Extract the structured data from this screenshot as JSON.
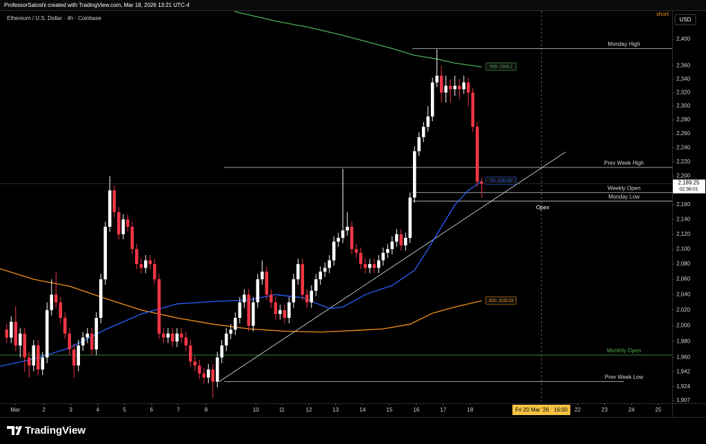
{
  "header": {
    "credit": "ProfessorSatoshi created with TradingView.com, Mar 18, 2026 13:21 UTC-4"
  },
  "chart_data": {
    "type": "candlestick",
    "title": "Ethereum / U.S. Dollar · 4h · Coinbase",
    "currency": "USD",
    "badge": "short",
    "log_scale": true,
    "grid": false,
    "xlim": [
      -1.5,
      148.5
    ],
    "ylim": [
      1903.6,
      2443.6
    ],
    "yticks": [
      {
        "value": 2400,
        "label": "2,400"
      },
      {
        "value": 2360,
        "label": "2,360"
      },
      {
        "value": 2340,
        "label": "2,340"
      },
      {
        "value": 2320,
        "label": "2,320"
      },
      {
        "value": 2300,
        "label": "2,300"
      },
      {
        "value": 2280,
        "label": "2,280"
      },
      {
        "value": 2260,
        "label": "2,260"
      },
      {
        "value": 2240,
        "label": "2,240"
      },
      {
        "value": 2220,
        "label": "2,220"
      },
      {
        "value": 2200,
        "label": "2,200"
      },
      {
        "value": 2160,
        "label": "2,160"
      },
      {
        "value": 2140,
        "label": "2,140"
      },
      {
        "value": 2120,
        "label": "2,120"
      },
      {
        "value": 2100,
        "label": "2,100"
      },
      {
        "value": 2080,
        "label": "2,080"
      },
      {
        "value": 2060,
        "label": "2,060"
      },
      {
        "value": 2040,
        "label": "2,040"
      },
      {
        "value": 2020,
        "label": "2,020"
      },
      {
        "value": 2000,
        "label": "2,000"
      },
      {
        "value": 1980,
        "label": "1,980"
      },
      {
        "value": 1960,
        "label": "1,960"
      },
      {
        "value": 1942,
        "label": "1,942"
      },
      {
        "value": 1924,
        "label": "1,924"
      },
      {
        "value": 1907,
        "label": "1,907"
      }
    ],
    "xticks": [
      {
        "value": 1.9,
        "label": "Mar"
      },
      {
        "value": 8.3,
        "label": "2"
      },
      {
        "value": 14.3,
        "label": "3"
      },
      {
        "value": 20.3,
        "label": "4"
      },
      {
        "value": 26.3,
        "label": "5"
      },
      {
        "value": 32.3,
        "label": "6"
      },
      {
        "value": 38.3,
        "label": "7"
      },
      {
        "value": 44.5,
        "label": "8"
      },
      {
        "value": 55.6,
        "label": "10"
      },
      {
        "value": 61.4,
        "label": "11"
      },
      {
        "value": 67.4,
        "label": "12"
      },
      {
        "value": 73.4,
        "label": "13"
      },
      {
        "value": 79.4,
        "label": "14"
      },
      {
        "value": 85.4,
        "label": "15"
      },
      {
        "value": 91.4,
        "label": "16"
      },
      {
        "value": 97.4,
        "label": "17"
      },
      {
        "value": 103.4,
        "label": "18"
      },
      {
        "value": 127.4,
        "label": "22"
      },
      {
        "value": 133.4,
        "label": "23"
      },
      {
        "value": 139.4,
        "label": "24"
      },
      {
        "value": 145.4,
        "label": "25"
      }
    ],
    "time_marker": {
      "value": 119.3,
      "date": "Fri 20 Mar '26",
      "time": "16:00"
    },
    "candles": {
      "up_color": "#ffffff",
      "down_color": "#f23645",
      "open": [
        1995,
        1985,
        2005,
        1975,
        1990,
        1960,
        1950,
        1975,
        1945,
        1960,
        2020,
        2040,
        2030,
        2010,
        1990,
        1970,
        1950,
        1975,
        1985,
        1990,
        1970,
        2010,
        2060,
        2130,
        2180,
        2150,
        2120,
        2140,
        2130,
        2100,
        2080,
        2075,
        2085,
        2080,
        2060,
        1990,
        1985,
        1990,
        1980,
        1990,
        1985,
        1975,
        1955,
        1950,
        1940,
        1935,
        1945,
        1930,
        1960,
        1975,
        1990,
        1995,
        2010,
        2030,
        2040,
        2000,
        2030,
        2060,
        2070,
        2040,
        2030,
        2015,
        2020,
        2010,
        2030,
        2060,
        2080,
        2040,
        2030,
        2045,
        2060,
        2070,
        2075,
        2085,
        2110,
        2115,
        2125,
        2130,
        2100,
        2095,
        2080,
        2075,
        2080,
        2075,
        2085,
        2095,
        2100,
        2110,
        2120,
        2105,
        2115,
        2170,
        2235,
        2255,
        2270,
        2285,
        2335,
        2345,
        2320,
        2330,
        2325,
        2330,
        2325,
        2335,
        2320,
        2270,
        2192
      ],
      "high": [
        2002,
        2012,
        2025,
        1997,
        1997,
        1967,
        1982,
        1982,
        1967,
        2030,
        2060,
        2070,
        2037,
        2017,
        1997,
        1977,
        1982,
        1992,
        1997,
        1997,
        2017,
        2067,
        2137,
        2200,
        2187,
        2157,
        2147,
        2147,
        2137,
        2107,
        2087,
        2092,
        2092,
        2087,
        2067,
        1997,
        1997,
        1997,
        1997,
        1997,
        1992,
        1982,
        1962,
        1957,
        1947,
        1952,
        1952,
        1967,
        1982,
        1997,
        2002,
        2017,
        2037,
        2047,
        2047,
        2037,
        2067,
        2085,
        2077,
        2047,
        2037,
        2027,
        2027,
        2037,
        2067,
        2087,
        2087,
        2047,
        2052,
        2067,
        2077,
        2082,
        2092,
        2117,
        2122,
        2210,
        2150,
        2137,
        2107,
        2102,
        2087,
        2087,
        2087,
        2092,
        2102,
        2107,
        2117,
        2127,
        2127,
        2122,
        2177,
        2242,
        2262,
        2277,
        2300,
        2342,
        2385,
        2360,
        2345,
        2340,
        2345,
        2340,
        2345,
        2342,
        2327,
        2277,
        2198
      ],
      "low": [
        1978,
        1978,
        1968,
        1960,
        1942,
        1935,
        1943,
        1938,
        1938,
        1953,
        2013,
        2023,
        2003,
        1983,
        1963,
        1935,
        1943,
        1968,
        1978,
        1963,
        1963,
        2003,
        2053,
        2123,
        2143,
        2113,
        2113,
        2123,
        2093,
        2073,
        2068,
        2068,
        2073,
        2053,
        1983,
        1978,
        1978,
        1973,
        1973,
        1978,
        1968,
        1948,
        1943,
        1933,
        1928,
        1928,
        1910,
        1923,
        1953,
        1968,
        1983,
        1988,
        2003,
        2023,
        1993,
        1993,
        2023,
        2053,
        2033,
        2023,
        2008,
        2008,
        2003,
        2003,
        2023,
        2053,
        2033,
        2023,
        2023,
        2038,
        2053,
        2063,
        2068,
        2078,
        2103,
        2108,
        2118,
        2093,
        2088,
        2073,
        2068,
        2068,
        2068,
        2068,
        2078,
        2088,
        2093,
        2103,
        2098,
        2098,
        2108,
        2163,
        2228,
        2248,
        2263,
        2278,
        2328,
        2305,
        2305,
        2305,
        2315,
        2310,
        2318,
        2300,
        2263,
        2185,
        2170
      ],
      "close": [
        1985,
        2005,
        1975,
        1990,
        1960,
        1950,
        1975,
        1945,
        1960,
        2020,
        2040,
        2030,
        2010,
        1990,
        1970,
        1950,
        1975,
        1985,
        1990,
        1970,
        2010,
        2060,
        2130,
        2180,
        2150,
        2120,
        2140,
        2130,
        2100,
        2080,
        2075,
        2085,
        2080,
        2060,
        1990,
        1985,
        1990,
        1980,
        1990,
        1985,
        1975,
        1955,
        1950,
        1940,
        1935,
        1945,
        1930,
        1960,
        1975,
        1990,
        1995,
        2010,
        2030,
        2040,
        2000,
        2030,
        2060,
        2070,
        2040,
        2030,
        2015,
        2020,
        2010,
        2030,
        2060,
        2080,
        2040,
        2030,
        2045,
        2060,
        2070,
        2075,
        2085,
        2110,
        2115,
        2125,
        2130,
        2100,
        2095,
        2080,
        2075,
        2080,
        2075,
        2085,
        2095,
        2100,
        2110,
        2120,
        2105,
        2115,
        2170,
        2235,
        2255,
        2270,
        2285,
        2335,
        2345,
        2320,
        2330,
        2325,
        2330,
        2325,
        2335,
        2320,
        2270,
        2192,
        2189.25
      ]
    },
    "series": [
      {
        "name": "90D",
        "color": "#4caf50",
        "x": [
          50.8,
          60,
          67.7,
          75,
          80,
          86,
          90.8,
          96,
          100,
          106
        ],
        "values": [
          2443,
          2428,
          2418,
          2406,
          2397,
          2386,
          2376,
          2370,
          2364,
          2358.2
        ],
        "value_labels": [
          null,
          null,
          null,
          null,
          null,
          null,
          null,
          null,
          null,
          "90D: 2358.2"
        ]
      },
      {
        "name": "30D",
        "color": "#f7931a",
        "x": [
          -1.5,
          6,
          14,
          22,
          30,
          38,
          46,
          54,
          62,
          70,
          78,
          84,
          90,
          95,
          100,
          106
        ],
        "values": [
          2074,
          2060,
          2051,
          2035,
          2020,
          2010,
          2002,
          1996,
          1993,
          1992,
          1994,
          1996,
          2002,
          2016,
          2024,
          2032.03
        ],
        "value_labels": [
          null,
          null,
          null,
          null,
          null,
          null,
          null,
          null,
          null,
          null,
          null,
          null,
          null,
          null,
          null,
          "30D: 2032.03"
        ]
      },
      {
        "name": "7D",
        "color": "#2962ff",
        "x": [
          -1.5,
          6,
          14,
          22,
          30,
          38,
          46,
          54,
          60,
          66,
          72,
          75,
          80,
          86,
          91,
          94,
          97,
          100,
          103,
          106
        ],
        "values": [
          1949,
          1958,
          1972,
          1995,
          2015,
          2028,
          2031,
          2033,
          2040,
          2036,
          2022,
          2024,
          2040,
          2052,
          2072,
          2100,
          2130,
          2160,
          2180,
          2192.92
        ],
        "value_labels": [
          null,
          null,
          null,
          null,
          null,
          null,
          null,
          null,
          null,
          null,
          null,
          null,
          null,
          null,
          null,
          null,
          null,
          null,
          null,
          "7D: 2192.92"
        ]
      }
    ],
    "levels": [
      {
        "name": "Monday High",
        "value": 2386,
        "start": 90.5,
        "color": "#d1d4dc"
      },
      {
        "name": "Prev Week High",
        "value": 2212,
        "start": 48.5,
        "color": "#d1d4dc"
      },
      {
        "name": "Weekly Open",
        "value": 2177,
        "start": 90.5,
        "color": "#d1d4dc"
      },
      {
        "name": "Monday Low",
        "value": 2165,
        "start": 90.5,
        "color": "#d1d4dc"
      },
      {
        "name": "Monthly Open",
        "value": 1963,
        "start": -1.5,
        "color": "#4caf50"
      },
      {
        "name": "Prev Week Low",
        "value": 1930,
        "start": 48.5,
        "end": 137.7,
        "color": "#d1d4dc"
      }
    ],
    "trendline": {
      "x": [
        47.4,
        124.7
      ],
      "values": [
        1930,
        2234
      ],
      "color": "#d1d4dc"
    },
    "annotations": [
      {
        "text": "Opex",
        "x": 119.6,
        "y": 2156
      }
    ],
    "last_price": {
      "value": 2189.25,
      "label": "2,189.25",
      "countdown": "02:38:01"
    }
  },
  "footer": {
    "brand": "TradingView"
  }
}
